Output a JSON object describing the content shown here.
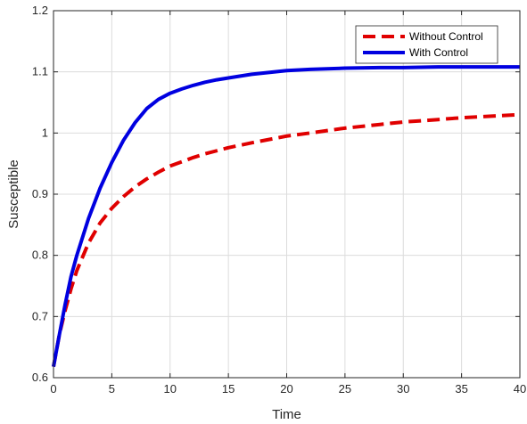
{
  "chart_data": {
    "type": "line",
    "xlabel": "Time",
    "ylabel": "Susceptible",
    "xlim": [
      0,
      40
    ],
    "ylim": [
      0.6,
      1.2
    ],
    "xticks": [
      0,
      5,
      10,
      15,
      20,
      25,
      30,
      35,
      40
    ],
    "yticks": [
      0.6,
      0.7,
      0.8,
      0.9,
      1.0,
      1.1,
      1.2
    ],
    "xtick_labels": [
      "0",
      "5",
      "10",
      "15",
      "20",
      "25",
      "30",
      "35",
      "40"
    ],
    "ytick_labels": [
      "0.6",
      "0.7",
      "0.8",
      "0.9",
      "1",
      "1.1",
      "1.2"
    ],
    "grid": true,
    "legend_position": "top-right",
    "series": [
      {
        "name": "Without Control",
        "color": "#e00000",
        "style": "dashed",
        "x": [
          0,
          0.5,
          1,
          1.5,
          2,
          3,
          4,
          5,
          6,
          7,
          8,
          9,
          10,
          11,
          12,
          13,
          14,
          15,
          17,
          20,
          22,
          25,
          28,
          30,
          33,
          35,
          38,
          40
        ],
        "y": [
          0.618,
          0.67,
          0.71,
          0.745,
          0.775,
          0.82,
          0.853,
          0.877,
          0.896,
          0.912,
          0.925,
          0.936,
          0.946,
          0.953,
          0.96,
          0.966,
          0.971,
          0.976,
          0.984,
          0.995,
          1.0,
          1.008,
          1.014,
          1.018,
          1.022,
          1.025,
          1.028,
          1.03
        ]
      },
      {
        "name": "With Control",
        "color": "#0000e0",
        "style": "solid",
        "x": [
          0,
          0.5,
          1,
          1.5,
          2,
          3,
          4,
          5,
          6,
          7,
          8,
          9,
          10,
          11,
          12,
          13,
          14,
          15,
          17,
          20,
          22,
          25,
          28,
          30,
          33,
          35,
          38,
          40
        ],
        "y": [
          0.618,
          0.67,
          0.72,
          0.765,
          0.8,
          0.86,
          0.91,
          0.952,
          0.988,
          1.017,
          1.04,
          1.055,
          1.065,
          1.072,
          1.078,
          1.083,
          1.087,
          1.09,
          1.096,
          1.102,
          1.104,
          1.106,
          1.107,
          1.107,
          1.108,
          1.108,
          1.108,
          1.108
        ]
      }
    ]
  }
}
